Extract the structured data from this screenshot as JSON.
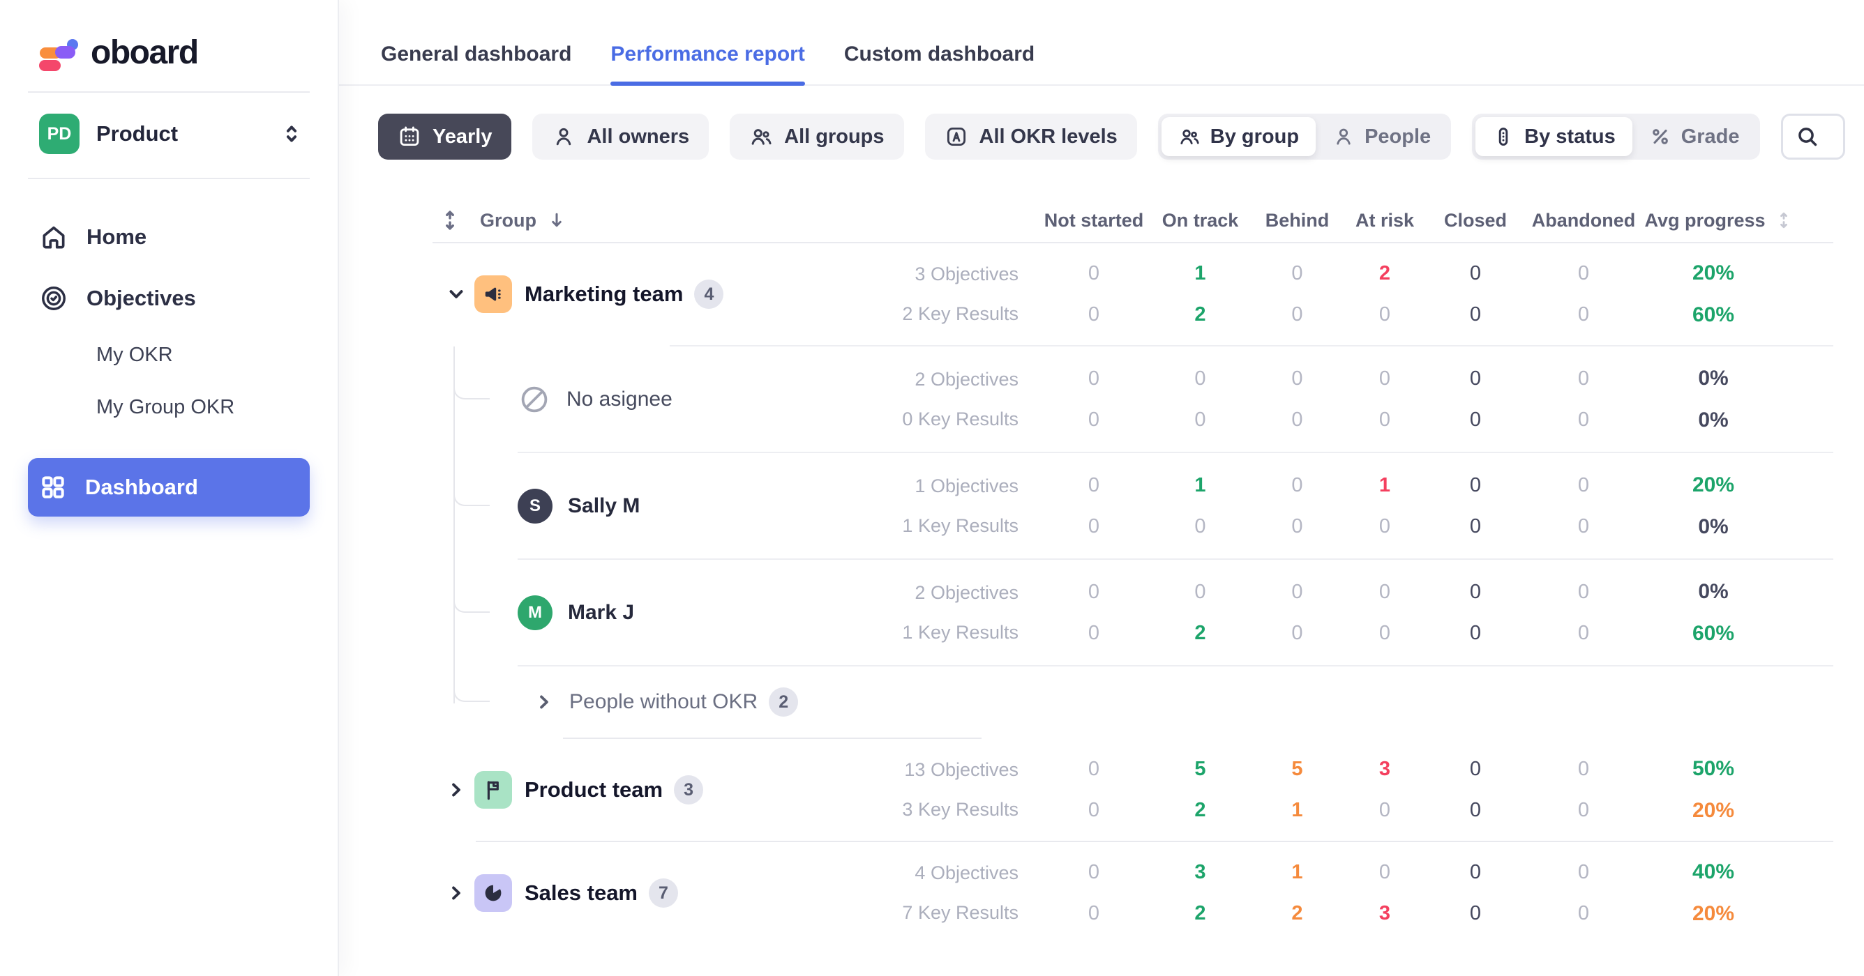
{
  "colors": {
    "muted": "#B4B6C3",
    "dark": "#45485E",
    "green": "#1CA46A",
    "orange": "#F58A3C",
    "red": "#F43F5E",
    "accent_blue": "#4A6CE4",
    "sidebar_active": "#5B74E8",
    "chip_dark": "#474858"
  },
  "sidebar": {
    "logo_text": "oboard",
    "workspace": {
      "initials": "PD",
      "name": "Product"
    },
    "items": [
      {
        "label": "Home"
      },
      {
        "label": "Objectives"
      }
    ],
    "sub_items": [
      {
        "label": "My OKR"
      },
      {
        "label": "My Group OKR"
      }
    ],
    "active_item": {
      "label": "Dashboard"
    }
  },
  "tabs": [
    {
      "label": "General dashboard",
      "active": false
    },
    {
      "label": "Performance report",
      "active": true
    },
    {
      "label": "Custom dashboard",
      "active": false
    }
  ],
  "filters": {
    "period": {
      "label": "Yearly"
    },
    "owners": {
      "label": "All owners"
    },
    "groups": {
      "label": "All groups"
    },
    "levels": {
      "label": "All OKR levels"
    },
    "view_toggle": {
      "options": [
        {
          "label": "By group",
          "active": true
        },
        {
          "label": "People",
          "active": false
        }
      ]
    },
    "mode_toggle": {
      "options": [
        {
          "label": "By status",
          "active": true
        },
        {
          "label": "Grade",
          "active": false
        }
      ]
    }
  },
  "search": {
    "placeholder": "Search"
  },
  "table": {
    "group_col": "Group",
    "columns": [
      "Not started",
      "On track",
      "Behind",
      "At risk",
      "Closed",
      "Abandoned"
    ],
    "avg_col": "Avg progress",
    "sections": [
      {
        "group": {
          "name": "Marketing team",
          "badge": "4",
          "icon": "megaphone",
          "icon_bg": "#FFC07E",
          "chevron": "down",
          "sep_after": "after-group",
          "lines": [
            {
              "label": "3 Objectives",
              "cells": [
                [
                  "0",
                  "muted"
                ],
                [
                  "1",
                  "green"
                ],
                [
                  "0",
                  "muted"
                ],
                [
                  "2",
                  "red"
                ],
                [
                  "0",
                  "dark"
                ],
                [
                  "0",
                  "muted"
                ]
              ],
              "avg": [
                "20%",
                "green"
              ]
            },
            {
              "label": "2 Key Results",
              "cells": [
                [
                  "0",
                  "muted"
                ],
                [
                  "2",
                  "green"
                ],
                [
                  "0",
                  "muted"
                ],
                [
                  "0",
                  "muted"
                ],
                [
                  "0",
                  "dark"
                ],
                [
                  "0",
                  "muted"
                ]
              ],
              "avg": [
                "60%",
                "green"
              ]
            }
          ]
        },
        "children": [
          {
            "kind": "none",
            "name": "No asignee",
            "sep_after": "sub",
            "lines": [
              {
                "label": "2 Objectives",
                "cells": [
                  [
                    "0",
                    "muted"
                  ],
                  [
                    "0",
                    "muted"
                  ],
                  [
                    "0",
                    "muted"
                  ],
                  [
                    "0",
                    "muted"
                  ],
                  [
                    "0",
                    "dark"
                  ],
                  [
                    "0",
                    "muted"
                  ]
                ],
                "avg": [
                  "0%",
                  "dark"
                ]
              },
              {
                "label": "0 Key Results",
                "cells": [
                  [
                    "0",
                    "muted"
                  ],
                  [
                    "0",
                    "muted"
                  ],
                  [
                    "0",
                    "muted"
                  ],
                  [
                    "0",
                    "muted"
                  ],
                  [
                    "0",
                    "dark"
                  ],
                  [
                    "0",
                    "muted"
                  ]
                ],
                "avg": [
                  "0%",
                  "dark"
                ]
              }
            ]
          },
          {
            "kind": "avatar",
            "name": "Sally M",
            "initial": "S",
            "avatar_bg": "#3D4054",
            "sep_after": "sub",
            "lines": [
              {
                "label": "1 Objectives",
                "cells": [
                  [
                    "0",
                    "muted"
                  ],
                  [
                    "1",
                    "green"
                  ],
                  [
                    "0",
                    "muted"
                  ],
                  [
                    "1",
                    "red"
                  ],
                  [
                    "0",
                    "dark"
                  ],
                  [
                    "0",
                    "muted"
                  ]
                ],
                "avg": [
                  "20%",
                  "green"
                ]
              },
              {
                "label": "1 Key Results",
                "cells": [
                  [
                    "0",
                    "muted"
                  ],
                  [
                    "0",
                    "muted"
                  ],
                  [
                    "0",
                    "muted"
                  ],
                  [
                    "0",
                    "muted"
                  ],
                  [
                    "0",
                    "dark"
                  ],
                  [
                    "0",
                    "muted"
                  ]
                ],
                "avg": [
                  "0%",
                  "dark"
                ]
              }
            ]
          },
          {
            "kind": "avatar",
            "name": "Mark J",
            "initial": "M",
            "avatar_bg": "#2EA76D",
            "sep_after": "sub",
            "lines": [
              {
                "label": "2 Objectives",
                "cells": [
                  [
                    "0",
                    "muted"
                  ],
                  [
                    "0",
                    "muted"
                  ],
                  [
                    "0",
                    "muted"
                  ],
                  [
                    "0",
                    "muted"
                  ],
                  [
                    "0",
                    "dark"
                  ],
                  [
                    "0",
                    "muted"
                  ]
                ],
                "avg": [
                  "0%",
                  "dark"
                ]
              },
              {
                "label": "1 Key Results",
                "cells": [
                  [
                    "0",
                    "muted"
                  ],
                  [
                    "2",
                    "green"
                  ],
                  [
                    "0",
                    "muted"
                  ],
                  [
                    "0",
                    "muted"
                  ],
                  [
                    "0",
                    "dark"
                  ],
                  [
                    "0",
                    "muted"
                  ]
                ],
                "avg": [
                  "60%",
                  "green"
                ]
              }
            ]
          },
          {
            "kind": "collapsed",
            "name": "People without OKR",
            "badge": "2",
            "chevron": "right",
            "sep_after": "short"
          }
        ]
      },
      {
        "group": {
          "name": "Product team",
          "badge": "3",
          "icon": "flag",
          "icon_bg": "#A9E3C5",
          "chevron": "right",
          "sep_after": "section",
          "lines": [
            {
              "label": "13 Objectives",
              "cells": [
                [
                  "0",
                  "muted"
                ],
                [
                  "5",
                  "green"
                ],
                [
                  "5",
                  "orange"
                ],
                [
                  "3",
                  "red"
                ],
                [
                  "0",
                  "dark"
                ],
                [
                  "0",
                  "muted"
                ]
              ],
              "avg": [
                "50%",
                "green"
              ]
            },
            {
              "label": "3 Key Results",
              "cells": [
                [
                  "0",
                  "muted"
                ],
                [
                  "2",
                  "green"
                ],
                [
                  "1",
                  "orange"
                ],
                [
                  "0",
                  "muted"
                ],
                [
                  "0",
                  "dark"
                ],
                [
                  "0",
                  "muted"
                ]
              ],
              "avg": [
                "20%",
                "orange"
              ]
            }
          ]
        }
      },
      {
        "group": {
          "name": "Sales team",
          "badge": "7",
          "icon": "pie",
          "icon_bg": "#C9C6F6",
          "chevron": "right",
          "lines": [
            {
              "label": "4 Objectives",
              "cells": [
                [
                  "0",
                  "muted"
                ],
                [
                  "3",
                  "green"
                ],
                [
                  "1",
                  "orange"
                ],
                [
                  "0",
                  "muted"
                ],
                [
                  "0",
                  "dark"
                ],
                [
                  "0",
                  "muted"
                ]
              ],
              "avg": [
                "40%",
                "green"
              ]
            },
            {
              "label": "7 Key Results",
              "cells": [
                [
                  "0",
                  "muted"
                ],
                [
                  "2",
                  "green"
                ],
                [
                  "2",
                  "orange"
                ],
                [
                  "3",
                  "red"
                ],
                [
                  "0",
                  "dark"
                ],
                [
                  "0",
                  "muted"
                ]
              ],
              "avg": [
                "20%",
                "orange"
              ]
            }
          ]
        }
      }
    ]
  }
}
